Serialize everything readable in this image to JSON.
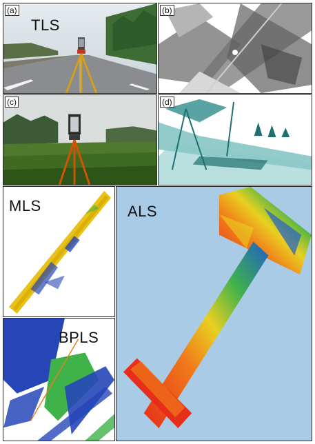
{
  "panels": {
    "a": {
      "tag": "(a)",
      "label": "TLS"
    },
    "b": {
      "tag": "(b)"
    },
    "c": {
      "tag": "(c)"
    },
    "d": {
      "tag": "(d)"
    },
    "mls": {
      "label": "MLS"
    },
    "bpls": {
      "label": "BPLS"
    },
    "als": {
      "label": "ALS"
    }
  },
  "icons": {
    "a": "road-scanner-photo",
    "b": "tls-point-cloud-grayscale",
    "c": "field-scanner-photo",
    "d": "tls-point-cloud-teal",
    "mls": "mls-point-cloud",
    "bpls": "bpls-point-cloud",
    "als": "als-point-cloud"
  },
  "colors": {
    "als_background": "#a9cbe6",
    "mls_yellow": "#e8c21a",
    "bpls_blue": "#2646b8",
    "bpls_green": "#3fb24a",
    "teal": "#2f8c8c"
  }
}
